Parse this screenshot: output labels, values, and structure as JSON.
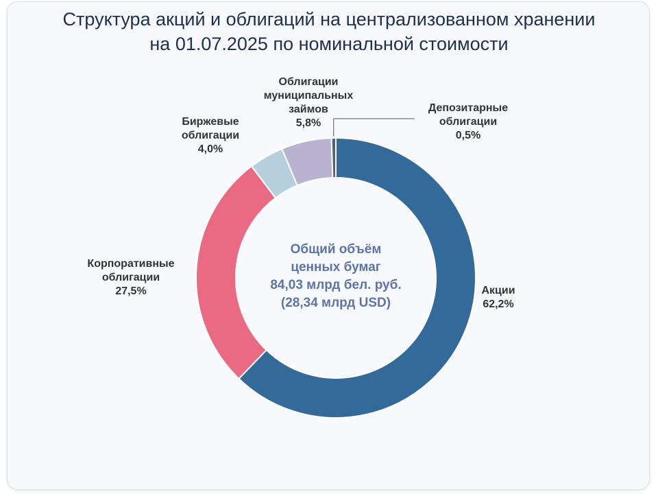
{
  "title": {
    "line1": "Структура акций и облигаций на централизованном хранении",
    "line2": "на 01.07.2025 по номинальной стоимости"
  },
  "center": {
    "line1": "Общий объём",
    "line2": "ценных бумаг",
    "line3": "84,03 млрд бел. руб.",
    "line4": "(28,34 млрд USD)"
  },
  "chart_data": {
    "type": "pie",
    "variant": "donut",
    "title": "Структура акций и облигаций на централизованном хранении на 01.07.2025 по номинальной стоимости",
    "start": "top",
    "direction": "clockwise",
    "slices": [
      {
        "label": [
          "Акции"
        ],
        "value": 62.2,
        "value_label": "62,2%",
        "color": "#336a9a"
      },
      {
        "label": [
          "Корпоративные",
          "облигации"
        ],
        "value": 27.5,
        "value_label": "27,5%",
        "color": "#ea6a84"
      },
      {
        "label": [
          "Биржевые",
          "облигации"
        ],
        "value": 4.0,
        "value_label": "4,0%",
        "color": "#b7cfdd"
      },
      {
        "label": [
          "Облигации",
          "муниципальных",
          "займов"
        ],
        "value": 5.8,
        "value_label": "5,8%",
        "color": "#bab2d1"
      },
      {
        "label": [
          "Депозитарные",
          "облигации"
        ],
        "value": 0.5,
        "value_label": "0,5%",
        "color": "#4f5f89"
      }
    ]
  }
}
